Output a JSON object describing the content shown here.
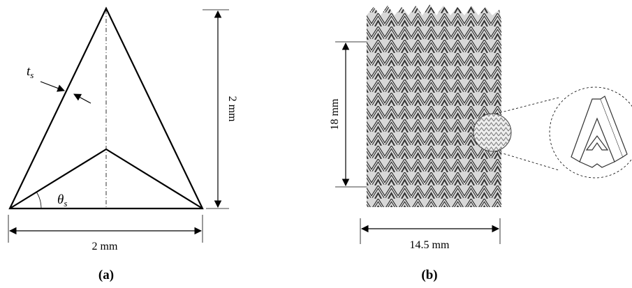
{
  "panel_a": {
    "thickness_label": {
      "base": "t",
      "sub": "s"
    },
    "angle_label": {
      "base": "θ",
      "sub": "s"
    },
    "height_label": "2 mm",
    "width_label": "2 mm",
    "caption": "(a)"
  },
  "panel_b": {
    "height_label": "18 mm",
    "width_label": "14.5 mm",
    "caption": "(b)"
  }
}
